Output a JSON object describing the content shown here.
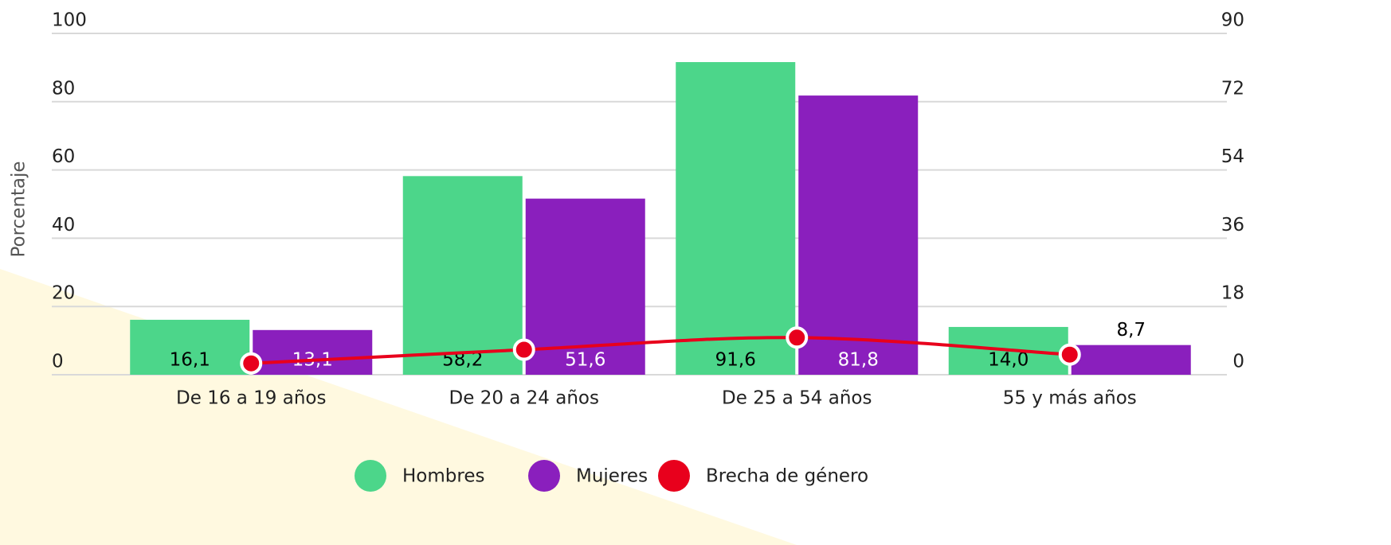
{
  "chart_data": {
    "type": "bar",
    "y_label": "Porcentaje",
    "categories": [
      "De 16 a 19 años",
      "De 20 a 24 años",
      "De 25 a 54 años",
      "55 y más años"
    ],
    "series": [
      {
        "name": "Hombres",
        "color": "#4cd68a",
        "values": [
          16.1,
          58.2,
          91.6,
          14.0
        ],
        "value_labels": [
          "16,1",
          "58,2",
          "91,6",
          "14,0"
        ],
        "label_color": "#000000"
      },
      {
        "name": "Mujeres",
        "color": "#8a1fbd",
        "values": [
          13.1,
          51.6,
          81.8,
          8.7
        ],
        "value_labels": [
          "13,1",
          "51,6",
          "81,8",
          "8,7"
        ],
        "label_color": "#ffffff"
      },
      {
        "name": "Brecha de género",
        "type": "line",
        "axis": "y2",
        "color": "#e8001c",
        "values": [
          3.0,
          6.6,
          9.8,
          5.3
        ]
      }
    ],
    "ylim": [
      0,
      100
    ],
    "yticks": [
      0,
      20,
      40,
      60,
      80,
      100
    ],
    "y2lim": [
      0,
      90
    ],
    "y2ticks": [
      0,
      18,
      36,
      54,
      72,
      90
    ],
    "grid": true,
    "legend": "bottom"
  }
}
